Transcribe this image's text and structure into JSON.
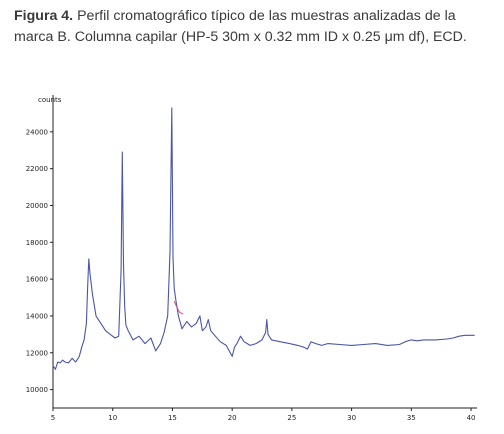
{
  "caption": {
    "label": "Figura 4.",
    "text": "Perfil cromatográfico típico de las muestras analizadas de la marca B. Columna capilar (HP-5 30m x 0.32 mm ID x 0.25 μm df), ECD."
  },
  "chart_data": {
    "type": "line",
    "title": "",
    "xlabel": "",
    "ylabel": "counts",
    "xlim": [
      5,
      40.5
    ],
    "ylim": [
      9000,
      26000
    ],
    "xticks": [
      5,
      10,
      15,
      20,
      25,
      30,
      35,
      40
    ],
    "yticks": [
      10000,
      12000,
      14000,
      16000,
      18000,
      20000,
      22000,
      24000
    ],
    "grid": false,
    "line_color": "#4a55a8",
    "highlight_color": "#d24a8a",
    "series": [
      {
        "x": [
          5.0,
          5.2,
          5.4,
          5.6,
          5.8,
          6.0,
          6.3,
          6.6,
          6.9,
          7.2,
          7.4,
          7.6,
          7.8,
          7.9,
          8.0,
          8.1,
          8.3,
          8.6,
          9.0,
          9.4,
          9.8,
          10.2,
          10.5,
          10.7,
          10.8,
          10.9,
          11.0,
          11.1,
          11.3,
          11.7,
          12.2,
          12.7,
          13.2,
          13.6,
          14.0,
          14.3,
          14.6,
          14.8,
          14.95,
          15.05,
          15.15,
          15.3,
          15.5,
          15.8,
          16.2,
          16.6,
          17.0,
          17.3,
          17.5,
          17.8,
          18.0,
          18.2,
          18.6,
          19.0,
          19.5,
          20.0,
          20.2,
          20.4,
          20.7,
          21.0,
          21.5,
          22.0,
          22.5,
          22.8,
          22.9,
          23.0,
          23.3,
          24.0,
          24.8,
          25.5,
          26.0,
          26.3,
          26.6,
          27.0,
          27.5,
          28.0,
          29.0,
          30.0,
          31.0,
          32.0,
          33.0,
          34.0,
          34.5,
          35.0,
          35.5,
          36.0,
          37.0,
          38.0,
          38.5,
          39.0,
          39.5,
          40.0,
          40.3
        ],
        "y": [
          11300,
          11100,
          11500,
          11450,
          11600,
          11500,
          11450,
          11700,
          11500,
          11800,
          12300,
          12700,
          13600,
          15500,
          17100,
          16300,
          15200,
          14000,
          13600,
          13200,
          13000,
          12800,
          12900,
          16500,
          22900,
          16800,
          14500,
          13500,
          13200,
          12700,
          12900,
          12500,
          12800,
          12100,
          12500,
          13100,
          14000,
          17500,
          25300,
          17200,
          15500,
          14800,
          14000,
          13300,
          13700,
          13400,
          13600,
          14000,
          13200,
          13400,
          13800,
          13200,
          12900,
          12600,
          12400,
          11800,
          12300,
          12500,
          12900,
          12600,
          12400,
          12500,
          12700,
          13100,
          13800,
          13000,
          12700,
          12600,
          12500,
          12400,
          12300,
          12200,
          12600,
          12500,
          12400,
          12500,
          12450,
          12400,
          12450,
          12500,
          12400,
          12450,
          12600,
          12700,
          12650,
          12700,
          12700,
          12750,
          12800,
          12900,
          12950,
          12950,
          12950
        ]
      }
    ],
    "highlight": {
      "x": [
        15.15,
        15.35,
        15.6,
        15.9
      ],
      "y": [
        14800,
        14500,
        14200,
        14100
      ]
    }
  }
}
